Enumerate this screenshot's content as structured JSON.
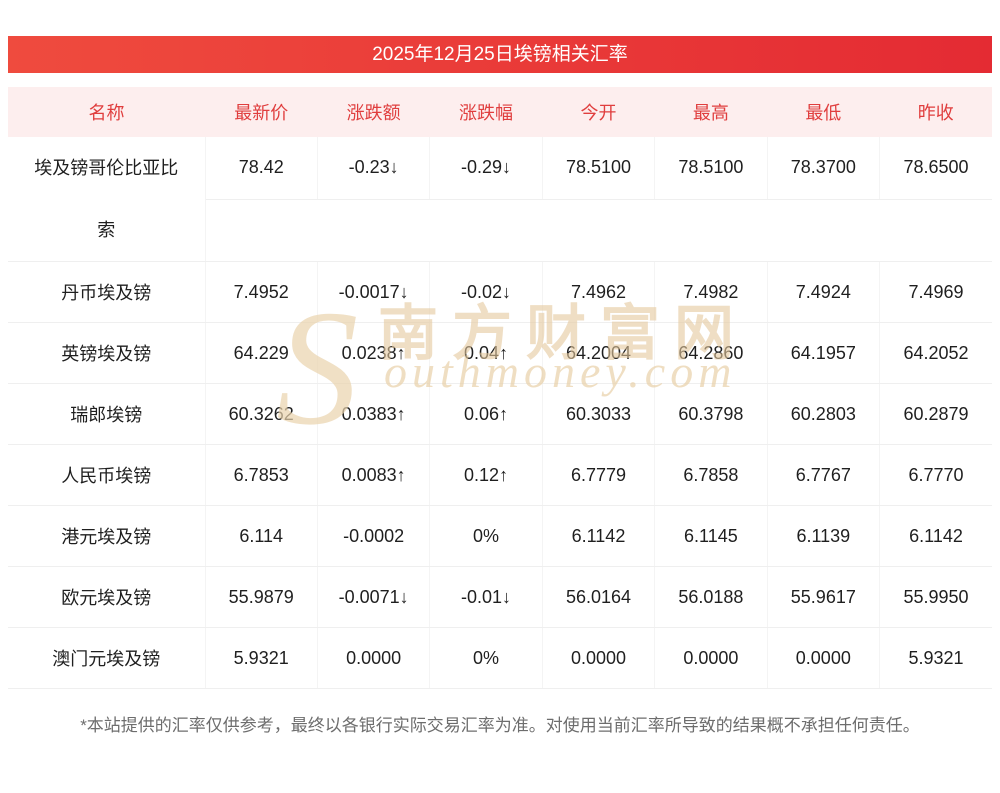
{
  "title": "2025年12月25日埃镑相关汇率",
  "chart_data": {
    "type": "table",
    "title": "2025年12月25日埃镑相关汇率",
    "columns": [
      "名称",
      "最新价",
      "涨跌额",
      "涨跌幅",
      "今开",
      "最高",
      "最低",
      "昨收"
    ],
    "rows": [
      {
        "name": "埃及镑哥伦比亚比索",
        "latest": "78.42",
        "change": "-0.23↓",
        "change_pct": "-0.29↓",
        "open": "78.5100",
        "high": "78.5100",
        "low": "78.3700",
        "prev_close": "78.6500",
        "trend": "down"
      },
      {
        "name": "丹币埃及镑",
        "latest": "7.4952",
        "change": "-0.0017↓",
        "change_pct": "-0.02↓",
        "open": "7.4962",
        "high": "7.4982",
        "low": "7.4924",
        "prev_close": "7.4969",
        "trend": "down"
      },
      {
        "name": "英镑埃及镑",
        "latest": "64.229",
        "change": "0.0238↑",
        "change_pct": "0.04↑",
        "open": "64.2004",
        "high": "64.2860",
        "low": "64.1957",
        "prev_close": "64.2052",
        "trend": "up"
      },
      {
        "name": "瑞郎埃镑",
        "latest": "60.3262",
        "change": "0.0383↑",
        "change_pct": "0.06↑",
        "open": "60.3033",
        "high": "60.3798",
        "low": "60.2803",
        "prev_close": "60.2879",
        "trend": "up"
      },
      {
        "name": "人民币埃镑",
        "latest": "6.7853",
        "change": "0.0083↑",
        "change_pct": "0.12↑",
        "open": "6.7779",
        "high": "6.7858",
        "low": "6.7767",
        "prev_close": "6.7770",
        "trend": "up"
      },
      {
        "name": "港元埃及镑",
        "latest": "6.114",
        "change": "-0.0002",
        "change_pct": "0%",
        "open": "6.1142",
        "high": "6.1145",
        "low": "6.1139",
        "prev_close": "6.1142",
        "trend": "flat"
      },
      {
        "name": "欧元埃及镑",
        "latest": "55.9879",
        "change": "-0.0071↓",
        "change_pct": "-0.01↓",
        "open": "56.0164",
        "high": "56.0188",
        "low": "55.9617",
        "prev_close": "55.9950",
        "trend": "down"
      },
      {
        "name": "澳门元埃及镑",
        "latest": "5.9321",
        "change": "0.0000",
        "change_pct": "0%",
        "open": "0.0000",
        "high": "0.0000",
        "low": "0.0000",
        "prev_close": "5.9321",
        "trend": "flat"
      }
    ]
  },
  "watermark": {
    "big_s": "S",
    "cn": "南方财富网",
    "en": "outhmoney.com"
  },
  "footer": {
    "disclaimer": "*本站提供的汇率仅供参考，最终以各银行实际交易汇率为准。对使用当前汇率所导致的结果概不承担任何责任。"
  },
  "colors": {
    "up": "#e12f2f",
    "down": "#1ca24e",
    "neutral": "#1f1f1f",
    "header_text": "#e03e3e",
    "header_bg": "#fdeeee",
    "title_bg_left": "#ef4b3e",
    "title_bg_right": "#e42b33"
  }
}
